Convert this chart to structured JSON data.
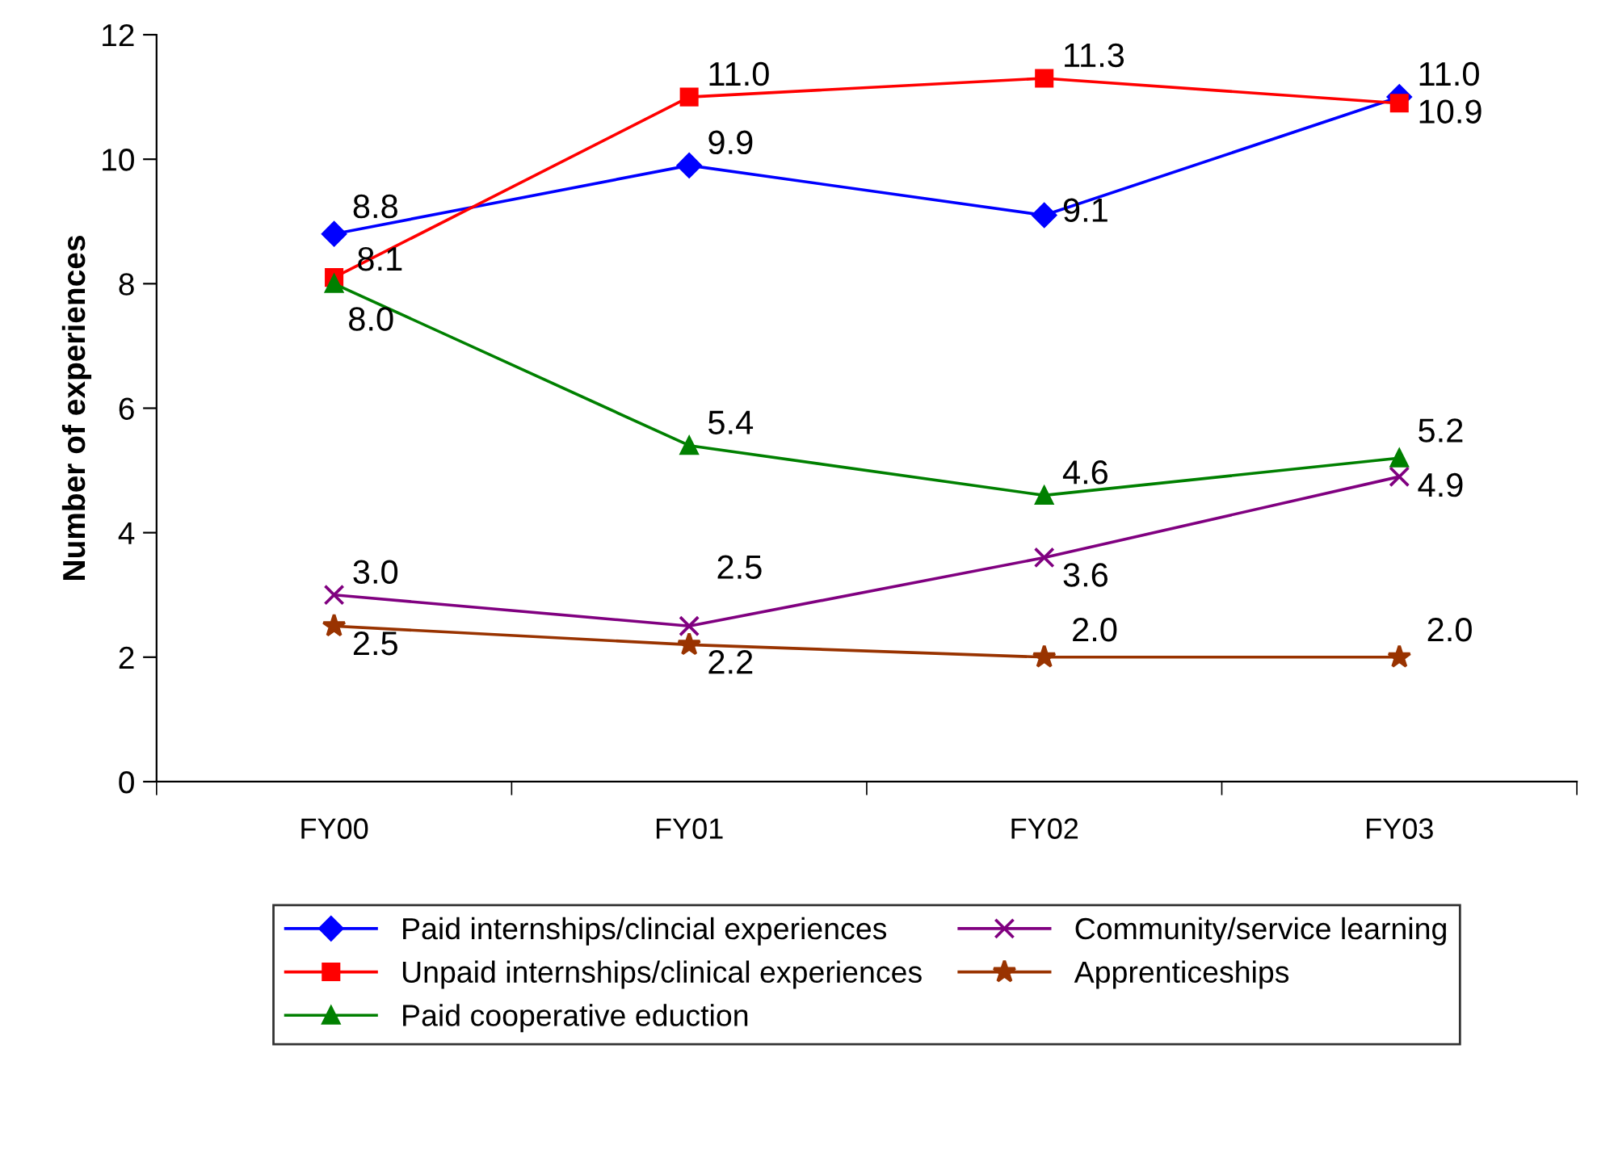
{
  "chart_data": {
    "type": "line",
    "ylabel": "Number of experiences",
    "categories": [
      "FY00",
      "FY01",
      "FY02",
      "FY03"
    ],
    "ylim": [
      0,
      12
    ],
    "yticks": [
      0,
      2,
      4,
      6,
      8,
      10,
      12
    ],
    "grid": false,
    "legend": "bottom",
    "line_style": "solid",
    "series": [
      {
        "name": "Paid internships/clincial experiences",
        "color": "#0000ff",
        "marker": "diamond",
        "values": [
          8.8,
          9.9,
          9.1,
          11.0
        ],
        "value_labels": [
          "8.8",
          "9.9",
          "9.1",
          "11.0"
        ]
      },
      {
        "name": "Unpaid internships/clinical experiences",
        "color": "#ff0000",
        "marker": "square",
        "values": [
          8.1,
          11.0,
          11.3,
          10.9
        ],
        "value_labels": [
          "8.1",
          "11.0",
          "11.3",
          "10.9"
        ]
      },
      {
        "name": "Paid cooperative eduction",
        "color": "#008000",
        "marker": "triangle",
        "values": [
          8.0,
          5.4,
          4.6,
          5.2
        ],
        "value_labels": [
          "8.0",
          "5.4",
          "4.6",
          "5.2"
        ]
      },
      {
        "name": "Community/service learning",
        "color": "#800080",
        "marker": "cross",
        "values": [
          3.0,
          2.5,
          3.6,
          4.9
        ],
        "value_labels": [
          "3.0",
          "2.5",
          "3.6",
          "4.9"
        ]
      },
      {
        "name": "Apprenticeships",
        "color": "#993300",
        "marker": "star",
        "values": [
          2.5,
          2.2,
          2.0,
          2.0
        ],
        "value_labels": [
          "2.5",
          "2.2",
          "2.0",
          "2.0"
        ]
      }
    ]
  }
}
